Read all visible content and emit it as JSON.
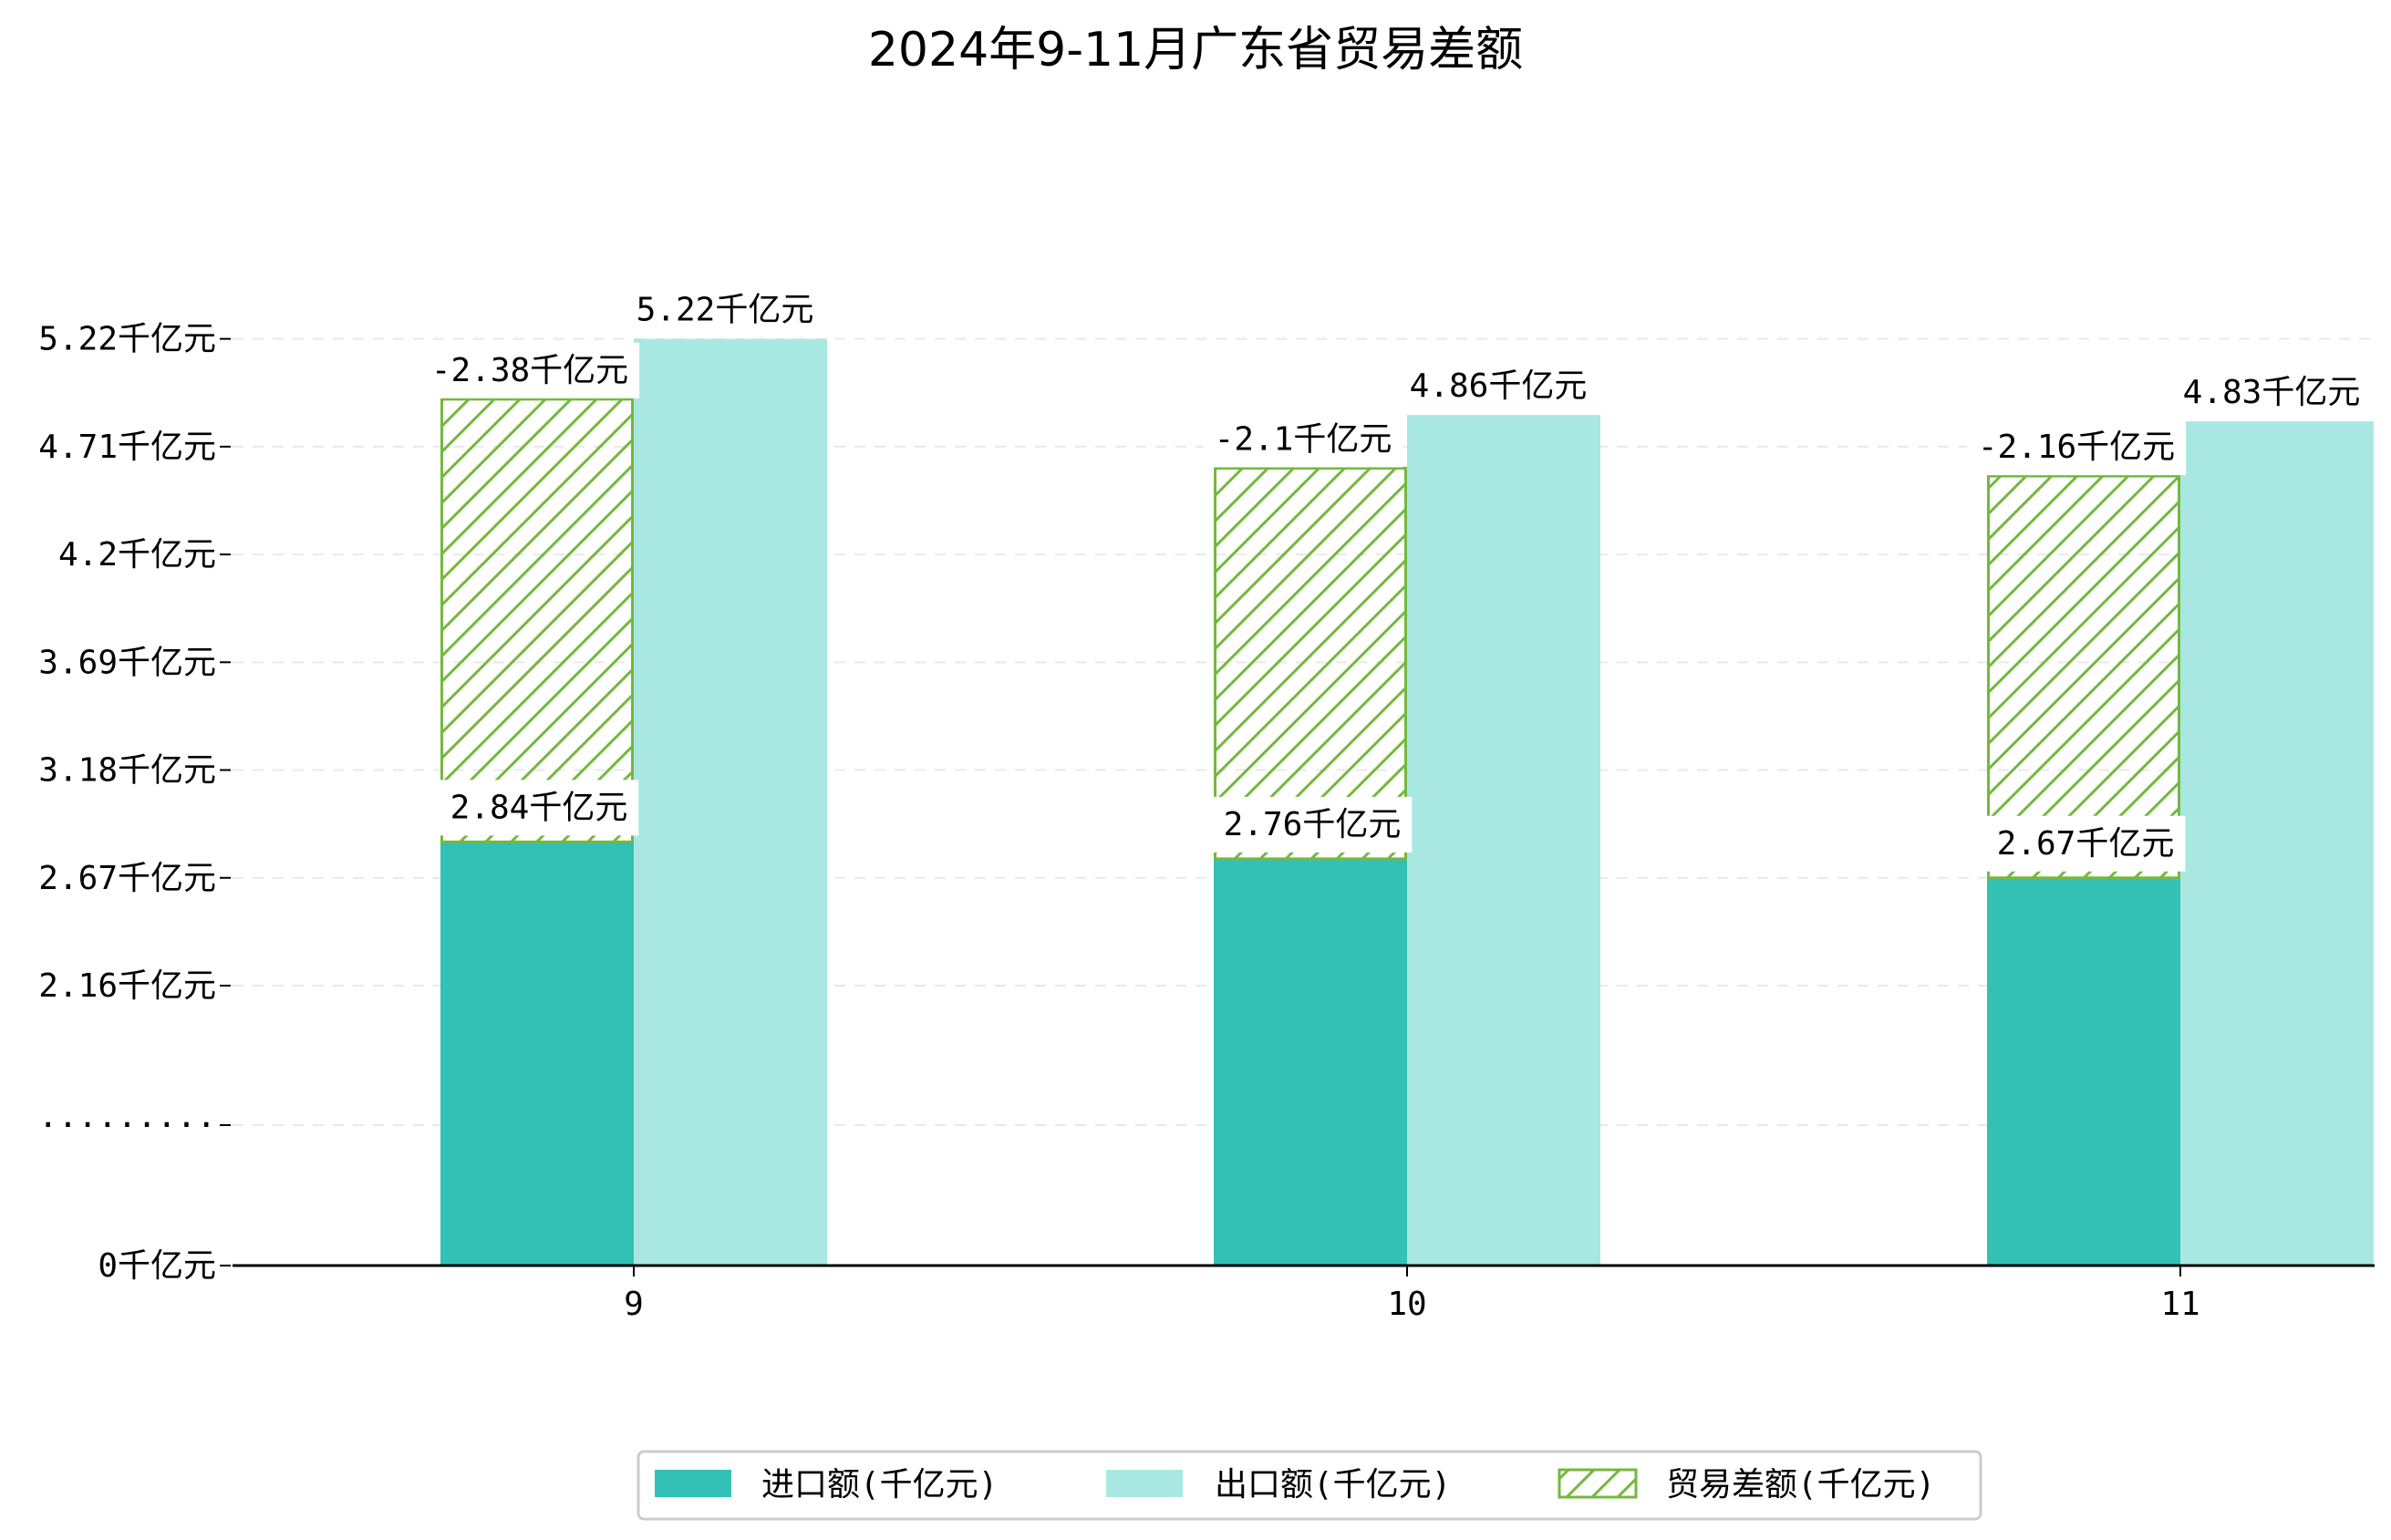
{
  "chart_data": {
    "type": "bar",
    "title": "2024年9-11月广东省贸易差额",
    "xlabel": "",
    "ylabel": "",
    "categories": [
      "9",
      "10",
      "11"
    ],
    "y_ticks": [
      "0千亿元",
      "·········",
      "2.16千亿元",
      "2.67千亿元",
      "3.18千亿元",
      "3.69千亿元",
      "4.2千亿元",
      "4.71千亿元",
      "5.22千亿元"
    ],
    "grid": true,
    "legend_position": "bottom-center",
    "series": [
      {
        "name": "进口额(千亿元)",
        "values": [
          2.84,
          2.76,
          2.67
        ],
        "labels": [
          "2.84千亿元",
          "2.76千亿元",
          "2.67千亿元"
        ],
        "color": "#32c1b4"
      },
      {
        "name": "出口额(千亿元)",
        "values": [
          5.22,
          4.86,
          4.83
        ],
        "labels": [
          "5.22千亿元",
          "4.86千亿元",
          "4.83千亿元"
        ],
        "color": "#a9e8e2"
      },
      {
        "name": "贸易差额(千亿元)",
        "values": [
          -2.38,
          -2.1,
          -2.16
        ],
        "labels": [
          "-2.38千亿元",
          "-2.1千亿元",
          "-2.16千亿元"
        ],
        "color": "#74b83e",
        "pattern": "hatch"
      }
    ]
  }
}
